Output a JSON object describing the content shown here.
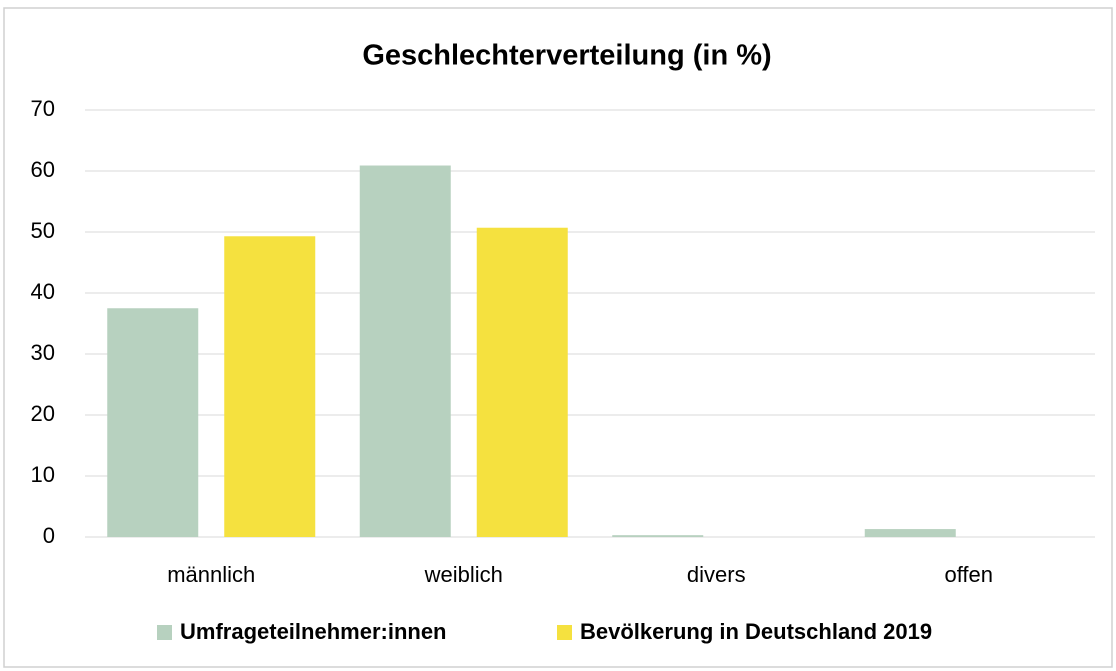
{
  "chart_data": {
    "type": "bar",
    "title": "Geschlechterverteilung (in %)",
    "categories": [
      "männlich",
      "weiblich",
      "divers",
      "offen"
    ],
    "series": [
      {
        "name": "Umfrageteilnehmer:innen",
        "color": "#b7d1bf",
        "values": [
          37.5,
          60.9,
          0.3,
          1.3
        ]
      },
      {
        "name": "Bevölkerung in Deutschland 2019",
        "color": "#f5e13f",
        "values": [
          49.3,
          50.7,
          0,
          0
        ]
      }
    ],
    "ylim": [
      0,
      70
    ],
    "yticks": [
      0,
      10,
      20,
      30,
      40,
      50,
      60,
      70
    ],
    "grid": true,
    "legend": "bottom"
  }
}
